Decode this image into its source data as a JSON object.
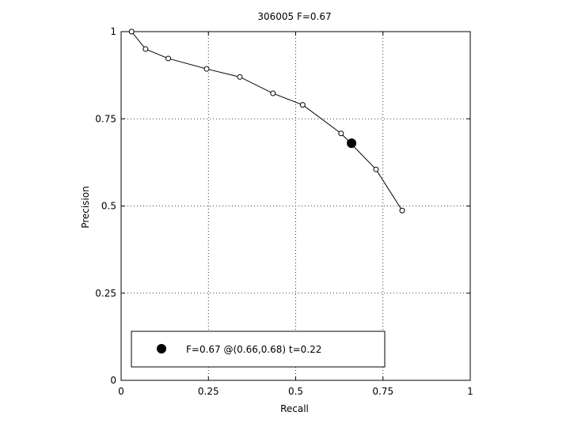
{
  "chart_data": {
    "type": "line",
    "title": "306005 F=0.67",
    "xlabel": "Recall",
    "ylabel": "Precision",
    "xlim": [
      0,
      1
    ],
    "ylim": [
      0,
      1
    ],
    "grid": true,
    "xticks": [
      0,
      0.25,
      0.5,
      0.75,
      1
    ],
    "yticks": [
      0,
      0.25,
      0.5,
      0.75,
      1
    ],
    "xtick_labels": [
      "0",
      "0.25",
      "0.5",
      "0.75",
      "1"
    ],
    "ytick_labels": [
      "0",
      "0.25",
      "0.5",
      "0.75",
      "1"
    ],
    "series": [
      {
        "x": [
          0.03,
          0.07,
          0.135,
          0.245,
          0.34,
          0.435,
          0.52,
          0.63,
          0.73,
          0.805
        ],
        "y": [
          1.0,
          0.95,
          0.923,
          0.893,
          0.87,
          0.823,
          0.79,
          0.708,
          0.605,
          0.487
        ],
        "marker": "open-circle",
        "color": "#000000"
      }
    ],
    "best_point": {
      "x": 0.66,
      "y": 0.68,
      "marker": "filled-circle",
      "color": "#000000"
    },
    "legend": {
      "position": "bottom-left",
      "text": "F=0.67 @(0.66,0.68) t=0.22"
    }
  }
}
